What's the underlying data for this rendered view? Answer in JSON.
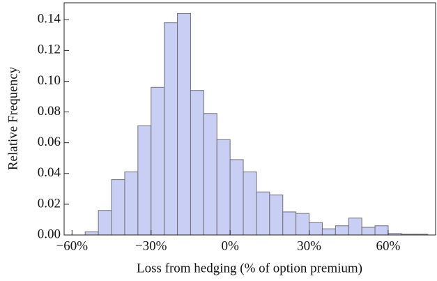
{
  "chart_data": {
    "type": "histogram",
    "x_label": "Loss from hedging (% of option premium)",
    "y_label": "Relative Frequency",
    "bins": [
      -55,
      -50,
      -45,
      -40,
      -35,
      -30,
      -25,
      -20,
      -15,
      -10,
      -5,
      0,
      5,
      10,
      15,
      20,
      25,
      30,
      35,
      40,
      45,
      50,
      55,
      60,
      65,
      70,
      75
    ],
    "values": [
      0.002,
      0.016,
      0.036,
      0.041,
      0.071,
      0.096,
      0.138,
      0.144,
      0.094,
      0.079,
      0.062,
      0.049,
      0.041,
      0.028,
      0.026,
      0.015,
      0.014,
      0.008,
      0.004,
      0.006,
      0.011,
      0.005,
      0.006,
      0.001,
      0.0005,
      0.0005
    ],
    "color": "#c9cef4",
    "edge_color": "#6e6e78",
    "xlim": [
      -63,
      78
    ],
    "ylim": [
      0,
      0.151
    ],
    "xticks": [
      {
        "value": -60,
        "label": "−60%"
      },
      {
        "value": -30,
        "label": "−30%"
      },
      {
        "value": 0,
        "label": "0%"
      },
      {
        "value": 30,
        "label": "30%"
      },
      {
        "value": 60,
        "label": "60%"
      }
    ],
    "yticks": [
      {
        "value": 0,
        "label": "0.00"
      },
      0.02,
      0.04,
      0.06,
      0.08,
      {
        "value": 0.1,
        "label": "0.10"
      },
      0.12,
      0.14
    ]
  }
}
